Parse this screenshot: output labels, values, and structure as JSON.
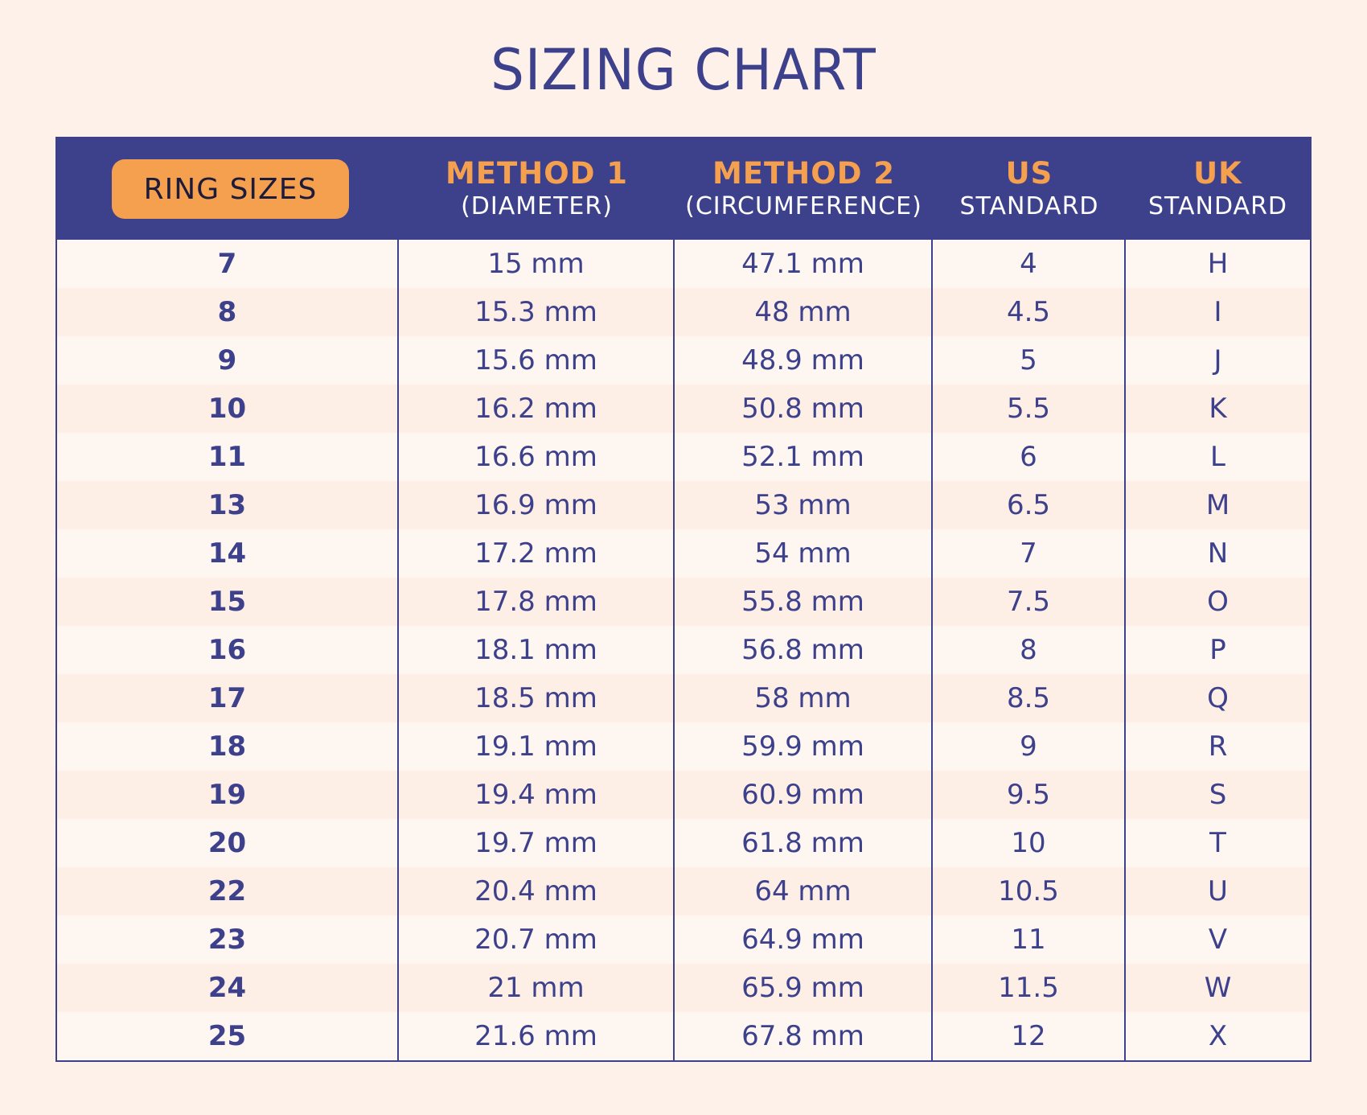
{
  "title": "SIZING CHART",
  "colors": {
    "background": "#fdf1ea",
    "header_bg": "#3d418c",
    "accent": "#f5a04f",
    "text": "#3d418c"
  },
  "table": {
    "headers": {
      "ring_sizes": "RING SIZES",
      "method1_title": "METHOD 1",
      "method1_sub": "(DIAMETER)",
      "method2_title": "METHOD 2",
      "method2_sub": "(CIRCUMFERENCE)",
      "us_title": "US",
      "us_sub": "STANDARD",
      "uk_title": "UK",
      "uk_sub": "STANDARD"
    },
    "rows": [
      [
        "7",
        "15 mm",
        "47.1 mm",
        "4",
        "H"
      ],
      [
        "8",
        "15.3 mm",
        "48 mm",
        "4.5",
        "I"
      ],
      [
        "9",
        "15.6 mm",
        "48.9 mm",
        "5",
        "J"
      ],
      [
        "10",
        "16.2 mm",
        "50.8 mm",
        "5.5",
        "K"
      ],
      [
        "11",
        "16.6 mm",
        "52.1 mm",
        "6",
        "L"
      ],
      [
        "13",
        "16.9 mm",
        "53 mm",
        "6.5",
        "M"
      ],
      [
        "14",
        "17.2 mm",
        "54 mm",
        "7",
        "N"
      ],
      [
        "15",
        "17.8 mm",
        "55.8 mm",
        "7.5",
        "O"
      ],
      [
        "16",
        "18.1 mm",
        "56.8 mm",
        "8",
        "P"
      ],
      [
        "17",
        "18.5 mm",
        "58 mm",
        "8.5",
        "Q"
      ],
      [
        "18",
        "19.1 mm",
        "59.9 mm",
        "9",
        "R"
      ],
      [
        "19",
        "19.4 mm",
        "60.9 mm",
        "9.5",
        "S"
      ],
      [
        "20",
        "19.7 mm",
        "61.8 mm",
        "10",
        "T"
      ],
      [
        "22",
        "20.4 mm",
        "64 mm",
        "10.5",
        "U"
      ],
      [
        "23",
        "20.7 mm",
        "64.9 mm",
        "11",
        "V"
      ],
      [
        "24",
        "21 mm",
        "65.9 mm",
        "11.5",
        "W"
      ],
      [
        "25",
        "21.6 mm",
        "67.8 mm",
        "12",
        "X"
      ]
    ]
  }
}
